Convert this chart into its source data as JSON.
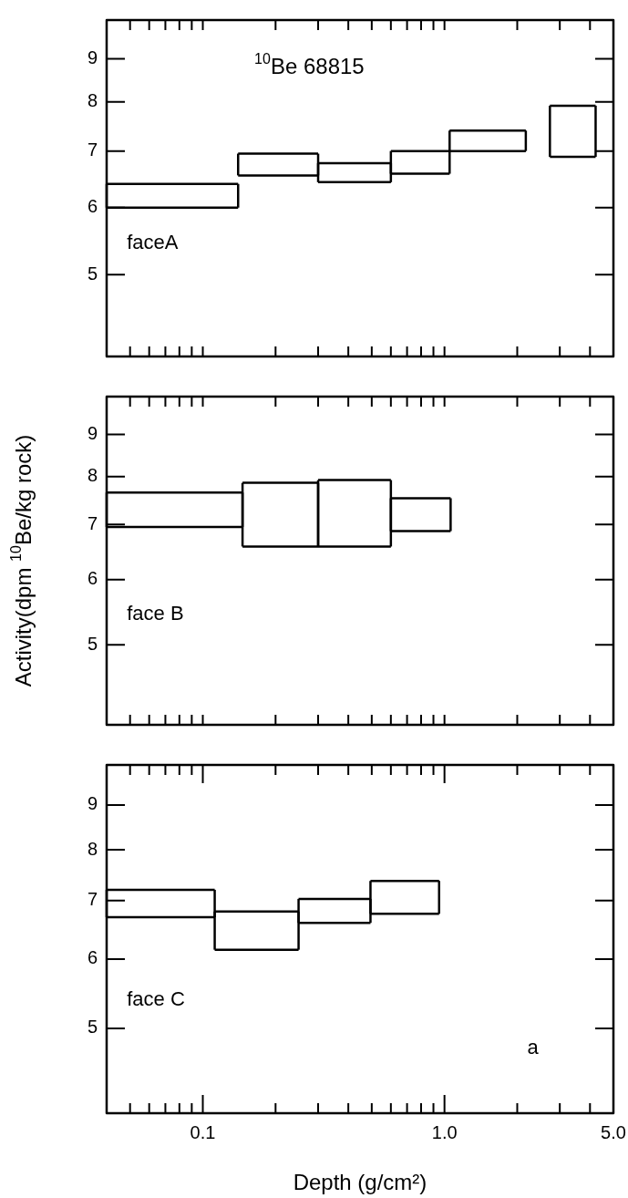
{
  "chart_data": [
    {
      "type": "line",
      "xlim": [
        0.04,
        5
      ],
      "ylim": [
        4,
        10
      ],
      "log": "xy",
      "marker": "none",
      "tick_labels": "y",
      "xticks": [
        {
          "value": 0.05,
          "label": null
        },
        {
          "value": 0.06,
          "label": null
        },
        {
          "value": 0.07,
          "label": null
        },
        {
          "value": 0.08,
          "label": null
        },
        {
          "value": 0.09,
          "label": null
        },
        {
          "value": 0.1,
          "label": null
        },
        {
          "value": 0.2,
          "label": null
        },
        {
          "value": 0.3,
          "label": null
        },
        {
          "value": 0.4,
          "label": null
        },
        {
          "value": 0.5,
          "label": null
        },
        {
          "value": 0.6,
          "label": null
        },
        {
          "value": 0.7,
          "label": null
        },
        {
          "value": 0.8,
          "label": null
        },
        {
          "value": 0.9,
          "label": null
        },
        {
          "value": 1,
          "label": null
        },
        {
          "value": 2,
          "label": null
        },
        {
          "value": 3,
          "label": null
        },
        {
          "value": 4,
          "label": null
        },
        {
          "value": 5,
          "label": null
        }
      ],
      "yticks": [
        5,
        6,
        7,
        8,
        9
      ],
      "annotations": [
        "$^{10}$Be 68815",
        "faceA"
      ],
      "series": [
        {
          "color": "#000000",
          "x": [
            0.04,
            0.14
          ],
          "values": [
            6.4,
            6.4
          ],
          "errors": [
            [
              6.0,
              6.4
            ],
            [
              6.0,
              6.4
            ]
          ]
        },
        {
          "color": "#000000",
          "x": [
            0.04,
            0.14
          ],
          "values": [
            6.0,
            6.0
          ]
        },
        {
          "color": "#000000",
          "x": [
            0.14,
            0.3
          ],
          "values": [
            6.95,
            6.95
          ],
          "errors": [
            [
              6.55,
              6.95
            ],
            [
              6.55,
              6.95
            ]
          ]
        },
        {
          "color": "#000000",
          "x": [
            0.14,
            0.3
          ],
          "values": [
            6.55,
            6.55
          ]
        },
        {
          "color": "#000000",
          "x": [
            0.3,
            0.6
          ],
          "values": [
            6.77,
            6.77
          ],
          "errors": [
            [
              6.43,
              6.77
            ],
            [
              6.43,
              6.77
            ]
          ]
        },
        {
          "color": "#000000",
          "x": [
            0.3,
            0.6
          ],
          "values": [
            6.43,
            6.43
          ]
        },
        {
          "color": "#000000",
          "x": [
            0.6,
            1.05,
            2.17
          ],
          "values": [
            7.0,
            7.0,
            7.0
          ],
          "errors": [
            [
              6.58,
              7.0
            ],
            [
              6.58,
              7.0
            ],
            null
          ]
        },
        {
          "color": "#000000",
          "x": [
            0.6,
            1.05
          ],
          "values": [
            6.58,
            6.58
          ]
        },
        {
          "color": "#000000",
          "x": [
            1.05,
            2.17
          ],
          "values": [
            7.4,
            7.4
          ],
          "errors": [
            [
              7.0,
              7.4
            ],
            [
              7.0,
              7.4
            ]
          ]
        },
        {
          "color": "#000000",
          "x": [
            2.73,
            4.22
          ],
          "values": [
            7.92,
            7.92
          ],
          "errors": [
            [
              6.89,
              7.92
            ],
            [
              6.89,
              7.92
            ]
          ]
        },
        {
          "color": "#000000",
          "x": [
            2.73,
            4.22
          ],
          "values": [
            6.89,
            6.89
          ]
        }
      ]
    },
    {
      "type": "line",
      "xlim": [
        0.04,
        5
      ],
      "ylim": [
        4,
        10
      ],
      "log": "xy",
      "marker": "none",
      "tick_labels": "y",
      "xticks": [
        {
          "value": 0.05,
          "label": null
        },
        {
          "value": 0.06,
          "label": null
        },
        {
          "value": 0.07,
          "label": null
        },
        {
          "value": 0.08,
          "label": null
        },
        {
          "value": 0.09,
          "label": null
        },
        {
          "value": 0.1,
          "label": null
        },
        {
          "value": 0.2,
          "label": null
        },
        {
          "value": 0.3,
          "label": null
        },
        {
          "value": 0.4,
          "label": null
        },
        {
          "value": 0.5,
          "label": null
        },
        {
          "value": 0.6,
          "label": null
        },
        {
          "value": 0.7,
          "label": null
        },
        {
          "value": 0.8,
          "label": null
        },
        {
          "value": 0.9,
          "label": null
        },
        {
          "value": 1,
          "label": null
        },
        {
          "value": 2,
          "label": null
        },
        {
          "value": 3,
          "label": null
        },
        {
          "value": 4,
          "label": null
        },
        {
          "value": 5,
          "label": null
        }
      ],
      "yticks": [
        5,
        6,
        7,
        8,
        9
      ],
      "ylabel": "Activity(dpm $^{10}$Be/kg rock)",
      "annotations": [
        "face B"
      ],
      "series": [
        {
          "color": "#000000",
          "x": [
            0.04,
            0.146
          ],
          "values": [
            7.65,
            7.65
          ],
          "errors": [
            [
              6.95,
              7.65
            ],
            [
              6.95,
              7.65
            ]
          ]
        },
        {
          "color": "#000000",
          "x": [
            0.04,
            0.146
          ],
          "values": [
            6.95,
            6.95
          ]
        },
        {
          "color": "#000000",
          "x": [
            0.146,
            0.3
          ],
          "values": [
            7.86,
            7.86
          ],
          "errors": [
            [
              6.58,
              7.86
            ],
            [
              6.58,
              7.86
            ]
          ]
        },
        {
          "color": "#000000",
          "x": [
            0.146,
            0.3,
            0.6
          ],
          "values": [
            6.58,
            6.58,
            6.58
          ]
        },
        {
          "color": "#000000",
          "x": [
            0.3,
            0.6
          ],
          "values": [
            7.92,
            7.92
          ],
          "errors": [
            [
              6.58,
              7.92
            ],
            [
              6.58,
              7.92
            ]
          ]
        },
        {
          "color": "#000000",
          "x": [
            0.6,
            1.06
          ],
          "values": [
            7.53,
            7.53
          ],
          "errors": [
            [
              6.87,
              7.53
            ],
            [
              6.87,
              7.53
            ]
          ]
        },
        {
          "color": "#000000",
          "x": [
            0.6,
            1.06
          ],
          "values": [
            6.87,
            6.87
          ]
        }
      ]
    },
    {
      "type": "line",
      "xlim": [
        0.04,
        5
      ],
      "ylim": [
        4,
        10
      ],
      "log": "xy",
      "marker": "none",
      "xticks": [
        {
          "value": 0.05,
          "label": null
        },
        {
          "value": 0.06,
          "label": null
        },
        {
          "value": 0.07,
          "label": null
        },
        {
          "value": 0.08,
          "label": null
        },
        {
          "value": 0.09,
          "label": null
        },
        0.1,
        {
          "value": 0.2,
          "label": null
        },
        {
          "value": 0.3,
          "label": null
        },
        {
          "value": 0.4,
          "label": null
        },
        {
          "value": 0.5,
          "label": null
        },
        {
          "value": 0.6,
          "label": null
        },
        {
          "value": 0.7,
          "label": null
        },
        {
          "value": 0.8,
          "label": null
        },
        {
          "value": 0.9,
          "label": null
        },
        {
          "value": 1,
          "label": "1.0"
        },
        {
          "value": 2,
          "label": null
        },
        {
          "value": 3,
          "label": null
        },
        {
          "value": 4,
          "label": null
        },
        {
          "value": 5,
          "label": "5.0"
        }
      ],
      "yticks": [
        5,
        6,
        7,
        8,
        9
      ],
      "xlabel": "Depth (g/cm²)",
      "annotations": [
        "face C",
        "a"
      ],
      "series": [
        {
          "color": "#000000",
          "x": [
            0.04,
            0.112
          ],
          "values": [
            7.2,
            7.2
          ],
          "errors": [
            [
              6.7,
              7.2
            ],
            [
              6.7,
              7.2
            ]
          ]
        },
        {
          "color": "#000000",
          "x": [
            0.04,
            0.112
          ],
          "values": [
            6.7,
            6.7
          ]
        },
        {
          "color": "#000000",
          "x": [
            0.112,
            0.249
          ],
          "values": [
            6.8,
            6.8
          ],
          "errors": [
            [
              6.15,
              6.8
            ],
            [
              6.15,
              6.8
            ]
          ]
        },
        {
          "color": "#000000",
          "x": [
            0.112,
            0.249
          ],
          "values": [
            6.15,
            6.15
          ]
        },
        {
          "color": "#000000",
          "x": [
            0.249,
            0.494
          ],
          "values": [
            7.03,
            7.03
          ],
          "errors": [
            [
              6.6,
              7.03
            ],
            [
              6.6,
              7.03
            ]
          ]
        },
        {
          "color": "#000000",
          "x": [
            0.249,
            0.494
          ],
          "values": [
            6.6,
            6.6
          ]
        },
        {
          "color": "#000000",
          "x": [
            0.494,
            0.95
          ],
          "values": [
            7.37,
            7.37
          ],
          "errors": [
            [
              6.76,
              7.37
            ],
            [
              6.76,
              7.37
            ]
          ]
        },
        {
          "color": "#000000",
          "x": [
            0.494,
            0.95
          ],
          "values": [
            6.76,
            6.76
          ]
        }
      ]
    }
  ]
}
